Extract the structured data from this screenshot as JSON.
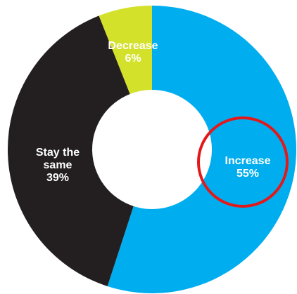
{
  "chart_data": {
    "type": "pie",
    "donut": true,
    "slices": [
      {
        "label_lines": [
          "Increase",
          "55%"
        ],
        "name": "Increase",
        "value": 55,
        "color": "#00AEEF"
      },
      {
        "label_lines": [
          "Stay the",
          "same",
          "39%"
        ],
        "name": "Stay the same",
        "value": 39,
        "color": "#231F20"
      },
      {
        "label_lines": [
          "Decrease",
          "6%"
        ],
        "name": "Decrease",
        "value": 6,
        "color": "#D4E12B"
      }
    ],
    "start_angle_deg": 0,
    "direction": "clockwise",
    "highlight": {
      "slice": "Increase",
      "shape": "circle",
      "color": "#E3181A"
    },
    "label_color": "#FFFFFF"
  }
}
